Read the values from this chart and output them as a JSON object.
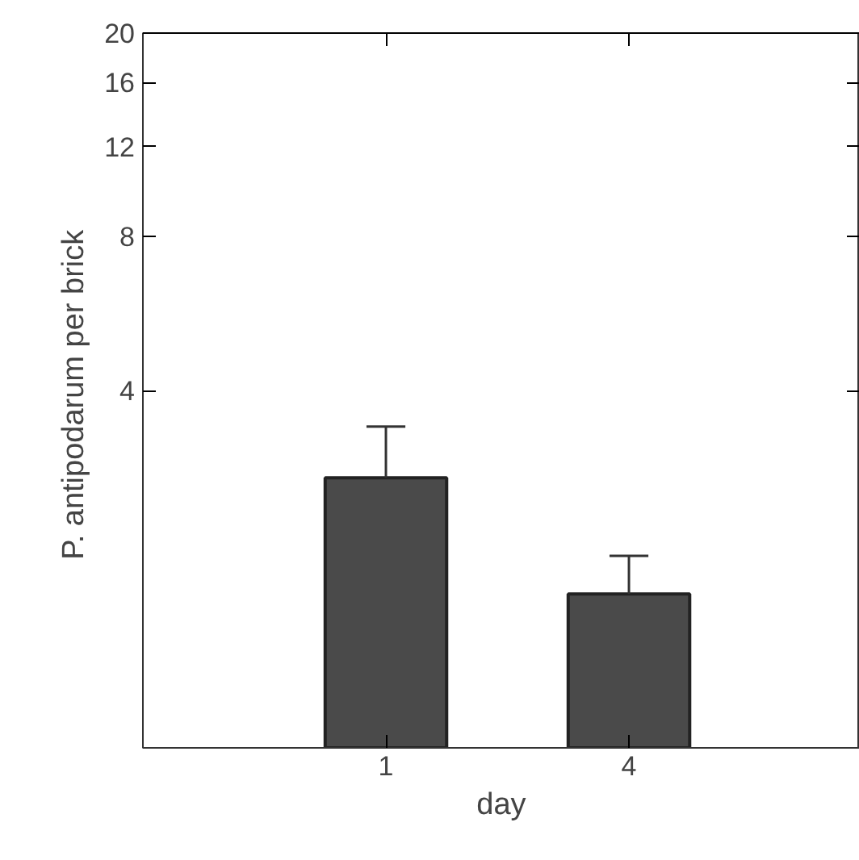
{
  "chart_data": {
    "type": "bar",
    "xlabel": "day",
    "ylabel": "P. antipodarum  per brick",
    "categories": [
      "1",
      "4"
    ],
    "values": [
      2.7,
      1.6
    ],
    "color": "#4a4a4a",
    "errors": [
      [
        2.7,
        3.4
      ],
      [
        1.6,
        1.9
      ]
    ],
    "ylim": [
      0.8,
      20
    ],
    "yticks": [
      4,
      8,
      12,
      16,
      20
    ],
    "log": true,
    "grid": false
  }
}
